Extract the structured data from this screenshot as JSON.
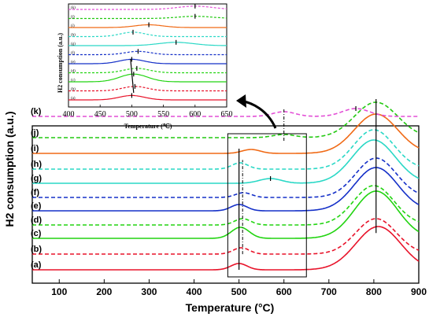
{
  "chart_data": [
    {
      "type": "line",
      "xlabel": "Temperature (°C)",
      "ylabel": "H2 consumption (a.u.)",
      "xlim": [
        40,
        900
      ],
      "xticks": [
        100,
        200,
        300,
        400,
        500,
        600,
        700,
        800,
        900
      ],
      "yticks_shown": false,
      "series": [
        {
          "name": "(a)",
          "color": "#e8132a",
          "dashed": false,
          "offset": 0,
          "peaks": [
            {
              "x": 500,
              "h": 8,
              "w": 18
            },
            {
              "x": 810,
              "h": 55,
              "w": 50
            }
          ]
        },
        {
          "name": "(b)",
          "color": "#e8132a",
          "dashed": true,
          "offset": 20,
          "peaks": [
            {
              "x": 505,
              "h": 8,
              "w": 18
            },
            {
              "x": 805,
              "h": 45,
              "w": 45
            }
          ]
        },
        {
          "name": "(c)",
          "color": "#22d411",
          "dashed": false,
          "offset": 40,
          "peaks": [
            {
              "x": 503,
              "h": 14,
              "w": 20
            },
            {
              "x": 805,
              "h": 60,
              "w": 48
            }
          ]
        },
        {
          "name": "(d)",
          "color": "#22d411",
          "dashed": true,
          "offset": 57,
          "peaks": [
            {
              "x": 508,
              "h": 8,
              "w": 18
            },
            {
              "x": 800,
              "h": 50,
              "w": 45
            }
          ]
        },
        {
          "name": "(e)",
          "color": "#1530c8",
          "dashed": false,
          "offset": 75,
          "peaks": [
            {
              "x": 500,
              "h": 8,
              "w": 18
            },
            {
              "x": 805,
              "h": 55,
              "w": 48
            }
          ]
        },
        {
          "name": "(f)",
          "color": "#1530c8",
          "dashed": true,
          "offset": 92,
          "peaks": [
            {
              "x": 510,
              "h": 6,
              "w": 18
            },
            {
              "x": 805,
              "h": 50,
              "w": 45
            }
          ]
        },
        {
          "name": "(g)",
          "color": "#2ad8c6",
          "dashed": false,
          "offset": 110,
          "peaks": [
            {
              "x": 570,
              "h": 6,
              "w": 25
            },
            {
              "x": 800,
              "h": 55,
              "w": 48
            }
          ]
        },
        {
          "name": "(h)",
          "color": "#2ad8c6",
          "dashed": true,
          "offset": 128,
          "peaks": [
            {
              "x": 502,
              "h": 8,
              "w": 18
            },
            {
              "x": 800,
              "h": 50,
              "w": 45
            }
          ]
        },
        {
          "name": "(i)",
          "color": "#f06a16",
          "dashed": false,
          "offset": 148,
          "peaks": [
            {
              "x": 527,
              "h": 5,
              "w": 20
            },
            {
              "x": 805,
              "h": 50,
              "w": 48
            }
          ]
        },
        {
          "name": "(j)",
          "color": "#22c911",
          "dashed": true,
          "offset": 168,
          "peaks": [
            {
              "x": 600,
              "h": 4,
              "w": 25
            },
            {
              "x": 805,
              "h": 45,
              "w": 48
            }
          ]
        },
        {
          "name": "(k)",
          "color": "#e34fd6",
          "dashed": true,
          "offset": 195,
          "peaks": [
            {
              "x": 600,
              "h": 6,
              "w": 25
            },
            {
              "x": 760,
              "h": 10,
              "w": 30
            }
          ]
        }
      ],
      "peak_markers_main": [
        {
          "x": 500,
          "from": 0,
          "to": 8
        },
        {
          "x": 508,
          "from": 1,
          "to": 7
        },
        {
          "x": 600,
          "from": 9,
          "to": 10
        },
        {
          "x": 805,
          "from": 0,
          "to": 9
        }
      ],
      "inset_box": {
        "x_from": 475,
        "x_to": 650
      }
    },
    {
      "type": "line",
      "xlabel": "Temperature (℃)",
      "ylabel": "H2 consumption (a.u.)",
      "xlim": [
        400,
        650
      ],
      "xticks": [
        400,
        450,
        500,
        550,
        600,
        650
      ],
      "yticks_shown": false
    }
  ]
}
